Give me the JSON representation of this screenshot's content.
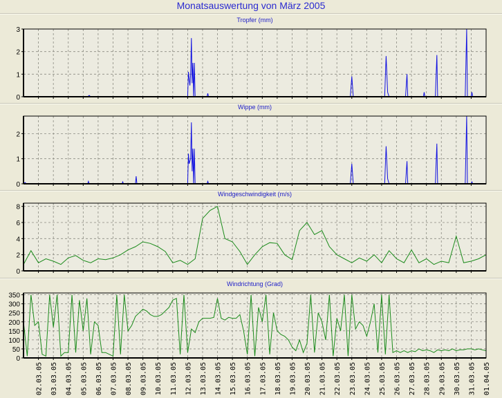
{
  "title": "Monatsauswertung von März 2005",
  "colors": {
    "rain": "#1010e0",
    "wind": "#1a8a1a",
    "title": "#2a2ad0",
    "plot_bg": "#ecebe0"
  },
  "chart_data": [
    {
      "type": "line",
      "title": "Tropfer (mm)",
      "ylim": [
        0,
        3
      ],
      "yticks": [
        0,
        1,
        2,
        3
      ],
      "xlim": [
        1,
        32
      ],
      "grid": true,
      "color_key": "rain",
      "points": [
        [
          1,
          0
        ],
        [
          5.3,
          0
        ],
        [
          5.4,
          0.06
        ],
        [
          5.5,
          0
        ],
        [
          12.0,
          0
        ],
        [
          12.05,
          1.1
        ],
        [
          12.1,
          0.8
        ],
        [
          12.15,
          0.5
        ],
        [
          12.2,
          1.0
        ],
        [
          12.25,
          2.6
        ],
        [
          12.3,
          0.6
        ],
        [
          12.35,
          1.5
        ],
        [
          12.4,
          0
        ],
        [
          12.45,
          1.5
        ],
        [
          12.5,
          0
        ],
        [
          13.3,
          0
        ],
        [
          13.35,
          0.15
        ],
        [
          13.4,
          0
        ],
        [
          22.9,
          0
        ],
        [
          23.0,
          0.9
        ],
        [
          23.1,
          0
        ],
        [
          25.2,
          0
        ],
        [
          25.3,
          1.8
        ],
        [
          25.4,
          0.2
        ],
        [
          25.5,
          0
        ],
        [
          26.6,
          0
        ],
        [
          26.7,
          1.0
        ],
        [
          26.75,
          0
        ],
        [
          27.8,
          0
        ],
        [
          27.85,
          0.2
        ],
        [
          27.9,
          0
        ],
        [
          28.6,
          0
        ],
        [
          28.7,
          1.85
        ],
        [
          28.75,
          0
        ],
        [
          30.6,
          0
        ],
        [
          30.65,
          1.6
        ],
        [
          30.7,
          3.0
        ],
        [
          30.75,
          0
        ],
        [
          31.0,
          0
        ],
        [
          31.05,
          0.2
        ],
        [
          31.1,
          0
        ],
        [
          32,
          0
        ]
      ]
    },
    {
      "type": "line",
      "title": "Wippe (mm)",
      "ylim": [
        0,
        2.7
      ],
      "yticks": [
        0,
        1,
        2
      ],
      "xlim": [
        1,
        32
      ],
      "grid": true,
      "color_key": "rain",
      "points": [
        [
          1,
          0
        ],
        [
          1.1,
          0.05
        ],
        [
          1.2,
          0
        ],
        [
          5.3,
          0
        ],
        [
          5.35,
          0.1
        ],
        [
          5.4,
          0
        ],
        [
          7.6,
          0
        ],
        [
          7.65,
          0.08
        ],
        [
          7.7,
          0
        ],
        [
          8.5,
          0
        ],
        [
          8.55,
          0.3
        ],
        [
          8.6,
          0
        ],
        [
          12.0,
          0
        ],
        [
          12.05,
          1.2
        ],
        [
          12.1,
          0.8
        ],
        [
          12.2,
          1.0
        ],
        [
          12.25,
          2.45
        ],
        [
          12.3,
          0.5
        ],
        [
          12.35,
          1.4
        ],
        [
          12.4,
          0
        ],
        [
          12.45,
          1.4
        ],
        [
          12.5,
          0
        ],
        [
          13.3,
          0
        ],
        [
          13.35,
          0.1
        ],
        [
          13.4,
          0
        ],
        [
          22.9,
          0
        ],
        [
          23.0,
          0.8
        ],
        [
          23.1,
          0
        ],
        [
          25.2,
          0
        ],
        [
          25.3,
          1.5
        ],
        [
          25.4,
          0.2
        ],
        [
          25.5,
          0
        ],
        [
          26.6,
          0
        ],
        [
          26.7,
          0.9
        ],
        [
          26.75,
          0
        ],
        [
          28.6,
          0
        ],
        [
          28.7,
          1.6
        ],
        [
          28.75,
          0
        ],
        [
          30.6,
          0
        ],
        [
          30.65,
          1.4
        ],
        [
          30.7,
          2.7
        ],
        [
          30.75,
          0
        ],
        [
          31.0,
          0
        ],
        [
          31.05,
          0.08
        ],
        [
          31.1,
          0
        ],
        [
          32,
          0
        ]
      ]
    },
    {
      "type": "line",
      "title": "Windgeschwindigkeit (m/s)",
      "ylim": [
        0,
        8.4
      ],
      "yticks": [
        0,
        2,
        4,
        6,
        8
      ],
      "xlim": [
        1,
        32
      ],
      "grid": true,
      "color_key": "wind",
      "x_start": 1,
      "x_step": 0.5,
      "values": [
        0.8,
        2.5,
        1.0,
        1.5,
        1.2,
        0.8,
        1.6,
        1.9,
        1.3,
        1.0,
        1.5,
        1.4,
        1.6,
        2.0,
        2.6,
        3.0,
        3.6,
        3.4,
        3.0,
        2.4,
        1.0,
        1.3,
        0.8,
        1.5,
        6.5,
        7.5,
        8.0,
        4.0,
        3.6,
        2.4,
        0.8,
        2.0,
        3.0,
        3.5,
        3.4,
        2.0,
        1.4,
        5.0,
        6.0,
        4.5,
        5.0,
        3.0,
        2.0,
        1.5,
        1.0,
        1.6,
        1.2,
        2.0,
        1.0,
        2.5,
        1.5,
        1.0,
        2.6,
        1.0,
        1.5,
        0.8,
        1.2,
        1.0,
        4.3,
        1.0,
        1.2,
        1.5,
        2.0
      ]
    },
    {
      "type": "line",
      "title": "Windrichtung (Grad)",
      "ylim": [
        0,
        360
      ],
      "yticks": [
        0,
        50,
        100,
        150,
        200,
        250,
        300,
        350
      ],
      "xlim": [
        1,
        32
      ],
      "grid": true,
      "color_key": "wind",
      "x_start": 1,
      "x_step": 0.25,
      "values": [
        200,
        10,
        350,
        180,
        200,
        20,
        10,
        350,
        170,
        350,
        10,
        30,
        30,
        350,
        30,
        320,
        150,
        330,
        20,
        200,
        180,
        30,
        30,
        20,
        10,
        350,
        20,
        350,
        150,
        180,
        230,
        250,
        270,
        260,
        240,
        230,
        230,
        240,
        260,
        280,
        320,
        330,
        20,
        350,
        30,
        160,
        140,
        200,
        220,
        220,
        220,
        225,
        330,
        220,
        210,
        225,
        220,
        220,
        240,
        150,
        20,
        350,
        10,
        280,
        200,
        350,
        20,
        250,
        150,
        130,
        120,
        100,
        60,
        40,
        100,
        30,
        80,
        350,
        30,
        250,
        200,
        100,
        350,
        10,
        220,
        150,
        350,
        10,
        350,
        160,
        200,
        180,
        120,
        200,
        300,
        30,
        350,
        20,
        350,
        30,
        40,
        30,
        40,
        30,
        40,
        35,
        50,
        40,
        45,
        40,
        30,
        45,
        40,
        45,
        40,
        50,
        40,
        45,
        45,
        50,
        50,
        45,
        50,
        45,
        40
      ]
    }
  ],
  "x_tick_labels": [
    "02.03.05",
    "03.03.05",
    "04.03.05",
    "05.03.05",
    "06.03.05",
    "07.03.05",
    "08.03.05",
    "09.03.05",
    "10.03.05",
    "11.03.05",
    "12.03.05",
    "13.03.05",
    "14.03.05",
    "15.03.05",
    "16.03.05",
    "17.03.05",
    "18.03.05",
    "19.03.05",
    "20.03.05",
    "21.03.05",
    "22.03.05",
    "23.03.05",
    "24.03.05",
    "25.03.05",
    "26.03.05",
    "27.03.05",
    "28.03.05",
    "29.03.05",
    "30.03.05",
    "31.03.05",
    "01.04.05"
  ]
}
